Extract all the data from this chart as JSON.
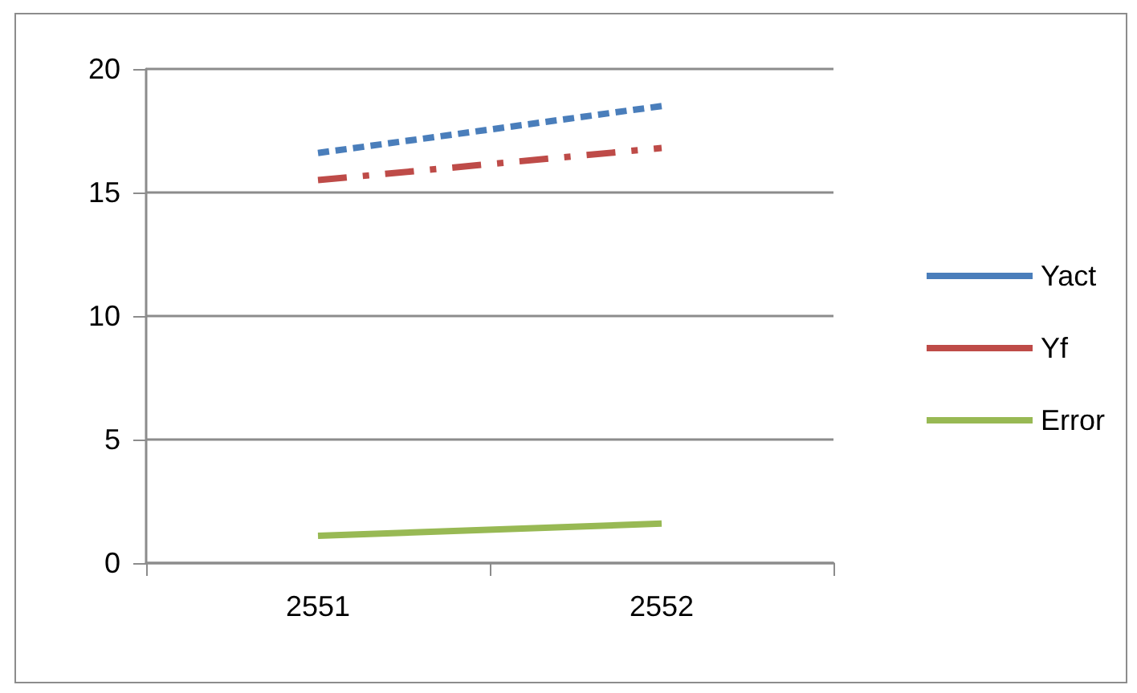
{
  "chart_data": {
    "type": "line",
    "categories": [
      "2551",
      "2552"
    ],
    "series": [
      {
        "name": "Yact",
        "color": "#4a7ebb",
        "values": [
          16.6,
          18.5
        ],
        "line_style": "dashed"
      },
      {
        "name": "Yf",
        "color": "#be4b48",
        "values": [
          15.5,
          16.8
        ],
        "line_style": "dashed"
      },
      {
        "name": "Error",
        "color": "#98b954",
        "values": [
          1.1,
          1.6
        ],
        "line_style": "solid"
      }
    ],
    "ylim": [
      0,
      20
    ],
    "yticks": [
      0,
      5,
      10,
      15,
      20
    ],
    "grid": "y",
    "legend": "right",
    "marker": "none"
  }
}
